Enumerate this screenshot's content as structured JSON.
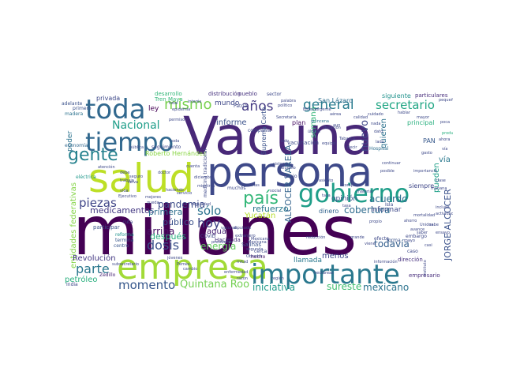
{
  "words": [
    {
      "text": "millones",
      "color": "#440154"
    },
    {
      "text": "Vacuna",
      "color": "#482878"
    },
    {
      "text": "persona",
      "color": "#3e4989"
    },
    {
      "text": "salud",
      "color": "#bddf26"
    },
    {
      "text": "empresa",
      "color": "#a2da37"
    },
    {
      "text": "importante",
      "color": "#2a788e"
    },
    {
      "text": "gobierno",
      "color": "#1f9e89"
    },
    {
      "text": "tiempo",
      "color": "#31688e"
    },
    {
      "text": "toda",
      "color": "#31688e"
    },
    {
      "text": "país",
      "color": "#35b779"
    },
    {
      "text": "gente",
      "color": "#26828e"
    },
    {
      "text": "mismo",
      "color": "#7ad151"
    },
    {
      "text": "años",
      "color": "#443a83"
    },
    {
      "text": "general",
      "color": "#287c8e"
    },
    {
      "text": "secretario",
      "color": "#22a785"
    },
    {
      "text": "Nacional",
      "color": "#1f9e89"
    },
    {
      "text": "piezas",
      "color": "#404688"
    },
    {
      "text": "parte",
      "color": "#2a788e"
    },
    {
      "text": "momento",
      "color": "#38588c"
    },
    {
      "text": "dosis",
      "color": "#3b528b"
    },
    {
      "text": "hoy",
      "color": "#404688"
    },
    {
      "text": "sólo",
      "color": "#2c728e"
    },
    {
      "text": "Quintana Roo",
      "color": "#75d054"
    },
    {
      "text": "medicamentos",
      "color": "#443983"
    },
    {
      "text": "público",
      "color": "#3b518b"
    },
    {
      "text": "arriba",
      "color": "#471365"
    },
    {
      "text": "primera",
      "color": "#2e6f8e"
    },
    {
      "text": "pandemia",
      "color": "#3d4d8a"
    },
    {
      "text": "después",
      "color": "#2ab07f"
    },
    {
      "text": "energía",
      "color": "#63cb5f"
    },
    {
      "text": "refuerzo",
      "color": "#2a788e"
    },
    {
      "text": "cobertura",
      "color": "#2f6c8e"
    },
    {
      "text": "todavía",
      "color": "#345f8d"
    },
    {
      "text": "iniciativa",
      "color": "#1f9a8a"
    },
    {
      "text": "sureste",
      "color": "#42be71"
    },
    {
      "text": "mexicano",
      "color": "#2c738e"
    },
    {
      "text": "acuerdo",
      "color": "#2e6e8e"
    },
    {
      "text": "nuevo",
      "color": "#3f4788"
    },
    {
      "text": "ALCOCER VARELA",
      "color": "#33638d"
    },
    {
      "text": "JORGE ALCOCER",
      "color": "#3b528b"
    },
    {
      "text": "entidades federativas",
      "color": "#86d549"
    },
    {
      "text": "Revolución",
      "color": "#443983"
    },
    {
      "text": "petróleo",
      "color": "#2ab07f"
    },
    {
      "text": "informe",
      "color": "#3b528b"
    },
    {
      "text": "mundo",
      "color": "#3f4889"
    },
    {
      "text": "agua",
      "color": "#482475"
    },
    {
      "text": "poder",
      "color": "#2c738e"
    },
    {
      "text": "ley",
      "color": "#440154"
    },
    {
      "text": "privada",
      "color": "#3e4989"
    },
    {
      "text": "desarrollo",
      "color": "#35b779"
    },
    {
      "text": "distribución",
      "color": "#46327e"
    },
    {
      "text": "pueblo",
      "color": "#46327e"
    },
    {
      "text": "siguiente",
      "color": "#20928c"
    },
    {
      "text": "particulares",
      "color": "#472d7b"
    },
    {
      "text": "principal",
      "color": "#2ab07f"
    },
    {
      "text": "Roberto Hernández",
      "color": "#8bd646"
    },
    {
      "text": "Suprema Corte",
      "color": "#3b528b"
    },
    {
      "text": "San Lázaro",
      "color": "#2e6e8e"
    },
    {
      "text": "vía",
      "color": "#2a788e"
    },
    {
      "text": "quieren",
      "color": "#2c728e"
    },
    {
      "text": "pueden",
      "color": "#1fa088"
    },
    {
      "text": "semana",
      "color": "#35b779"
    },
    {
      "text": "plan",
      "color": "#471063"
    },
    {
      "text": "vacunación",
      "color": "#3e4989"
    },
    {
      "text": "opinión",
      "color": "#3b528b"
    },
    {
      "text": "informar",
      "color": "#3e4989"
    },
    {
      "text": "siempre",
      "color": "#3f4788"
    },
    {
      "text": "dinero",
      "color": "#33638d"
    },
    {
      "text": "Yucatán",
      "color": "#b5de2b"
    },
    {
      "text": "llamada",
      "color": "#2a788e"
    },
    {
      "text": "menos",
      "color": "#3e4989"
    },
    {
      "text": "dirección",
      "color": "#46307e"
    },
    {
      "text": "empresario",
      "color": "#472d7b"
    },
    {
      "text": "India",
      "color": "#3e4989"
    },
    {
      "text": "Zedillo",
      "color": "#482475"
    },
    {
      "text": "participar",
      "color": "#3b528b"
    },
    {
      "text": "centro",
      "color": "#39568c"
    },
    {
      "text": "reforma",
      "color": "#20928c"
    },
    {
      "text": "termina",
      "color": "#38588c"
    },
    {
      "text": "ruta",
      "color": "#3f4889"
    },
    {
      "text": "economía",
      "color": "#31688e"
    },
    {
      "text": "madera",
      "color": "#2c728e"
    },
    {
      "text": "primero",
      "color": "#3b528b"
    },
    {
      "text": "adelante",
      "color": "#3b528b"
    },
    {
      "text": "eléctrica",
      "color": "#1f988b"
    },
    {
      "text": "Salinas",
      "color": "#3b528b"
    },
    {
      "text": "Hacienda",
      "color": "#46327e"
    },
    {
      "text": "COVID",
      "color": "#3e4989"
    },
    {
      "text": "hecho",
      "color": "#471063"
    },
    {
      "text": "PAN",
      "color": "#38598c"
    },
    {
      "text": "Isla",
      "color": "#3e4989"
    },
    {
      "text": "Hospital",
      "color": "#2e6e8e"
    },
    {
      "text": "forma",
      "color": "#3b528b"
    },
    {
      "text": "efecto",
      "color": "#3e4989"
    },
    {
      "text": "caso",
      "color": "#3e4989"
    },
    {
      "text": "Patria",
      "color": "#3e4989"
    },
    {
      "text": "Tren Maya",
      "color": "#35b779"
    },
    {
      "text": "sector",
      "color": "#3e4989"
    },
    {
      "text": "palabra",
      "color": "#3e4989"
    },
    {
      "text": "político",
      "color": "#3e4989"
    },
    {
      "text": "compañía",
      "color": "#3e4989"
    },
    {
      "text": "equipo",
      "color": "#3e4989"
    },
    {
      "text": "quincena",
      "color": "#2c728e"
    },
    {
      "text": "seguimiento",
      "color": "#3e4989"
    },
    {
      "text": "Secretaría",
      "color": "#3e4989"
    },
    {
      "text": "continuar",
      "color": "#3e4989"
    },
    {
      "text": "importancia",
      "color": "#3e4989"
    },
    {
      "text": "gasto",
      "color": "#3e4989"
    },
    {
      "text": "producción",
      "color": "#2ab07f"
    },
    {
      "text": "cuenta",
      "color": "#3e4989"
    },
    {
      "text": "embargo",
      "color": "#3e4989"
    },
    {
      "text": "pequeño",
      "color": "#3e4989"
    },
    {
      "text": "cerca",
      "color": "#3e4989"
    },
    {
      "text": "Mexicana",
      "color": "#3e4989"
    },
    {
      "text": "abajo",
      "color": "#3e4989"
    },
    {
      "text": "tasa",
      "color": "#3e4989"
    },
    {
      "text": "trabajo",
      "color": "#3e4989"
    },
    {
      "text": "atención",
      "color": "#3e4989"
    },
    {
      "text": "debe",
      "color": "#3e4989"
    },
    {
      "text": "seguro",
      "color": "#3e4989"
    },
    {
      "text": "mejores",
      "color": "#3e4989"
    },
    {
      "text": "queda",
      "color": "#3e4989"
    },
    {
      "text": "selva",
      "color": "#3e4989"
    },
    {
      "text": "servicio",
      "color": "#3e4989"
    },
    {
      "text": "interés",
      "color": "#3e4989"
    },
    {
      "text": "permiso",
      "color": "#3e4989"
    },
    {
      "text": "epidemia",
      "color": "#3e4989"
    },
    {
      "text": "actividad",
      "color": "#3e4989"
    },
    {
      "text": "mortalidad",
      "color": "#3e4989"
    },
    {
      "text": "Instituto",
      "color": "#3e4989"
    },
    {
      "text": "enfermedad",
      "color": "#3e4989"
    },
    {
      "text": "vacunas",
      "color": "#3e4989"
    },
    {
      "text": "presidente",
      "color": "#3e4989"
    },
    {
      "text": "doctor",
      "color": "#3e4989"
    },
    {
      "text": "Mexicana",
      "color": "#3e4989"
    },
    {
      "text": "reducción",
      "color": "#3e4989"
    },
    {
      "text": "material",
      "color": "#3e4989"
    },
    {
      "text": "compra",
      "color": "#3e4989"
    },
    {
      "text": "viene",
      "color": "#3e4989"
    },
    {
      "text": "saber",
      "color": "#3e4989"
    },
    {
      "text": "ensayo",
      "color": "#3e4989"
    },
    {
      "text": "incluso",
      "color": "#3e4989"
    },
    {
      "text": "casi",
      "color": "#3e4989"
    },
    {
      "text": "mitad",
      "color": "#3e4989"
    },
    {
      "text": "asiento",
      "color": "#3e4989"
    },
    {
      "text": "último",
      "color": "#3e4989"
    },
    {
      "text": "duración",
      "color": "#3e4989"
    },
    {
      "text": "aérea",
      "color": "#3e4989"
    },
    {
      "text": "aun",
      "color": "#3e4989"
    },
    {
      "text": "urgente",
      "color": "#3e4989"
    },
    {
      "text": "calidad",
      "color": "#3e4989"
    },
    {
      "text": "cuidado",
      "color": "#3e4989"
    },
    {
      "text": "nada",
      "color": "#3e4989"
    },
    {
      "text": "dato",
      "color": "#3e4989"
    },
    {
      "text": "hablar",
      "color": "#3e4989"
    },
    {
      "text": "mayor",
      "color": "#3e4989"
    },
    {
      "text": "información",
      "color": "#3e4989"
    },
    {
      "text": "grande",
      "color": "#3e4989"
    },
    {
      "text": "hectáreas",
      "color": "#3e4989"
    },
    {
      "text": "seguridad",
      "color": "#3e4989"
    },
    {
      "text": "vida",
      "color": "#3e4989"
    },
    {
      "text": "subsecretario",
      "color": "#3e4989"
    },
    {
      "text": "jóvenes",
      "color": "#3e4989"
    },
    {
      "text": "Pemex",
      "color": "#3e4989"
    },
    {
      "text": "cambio",
      "color": "#3e4989"
    },
    {
      "text": "haciendo",
      "color": "#3e4989"
    },
    {
      "text": "total",
      "color": "#3e4989"
    },
    {
      "text": "pública",
      "color": "#3e4989"
    },
    {
      "text": "Ejecutivo",
      "color": "#3e4989"
    },
    {
      "text": "personas",
      "color": "#3e4989"
    },
    {
      "text": "social",
      "color": "#3e4989"
    },
    {
      "text": "Obrador",
      "color": "#3e4989"
    },
    {
      "text": "segunda",
      "color": "#3e4989"
    },
    {
      "text": "extranjero",
      "color": "#3e4989"
    },
    {
      "text": "Birmex",
      "color": "#3e4989"
    },
    {
      "text": "Tabasco",
      "color": "#3e4989"
    },
    {
      "text": "posible",
      "color": "#3e4989"
    },
    {
      "text": "sido",
      "color": "#3e4989"
    },
    {
      "text": "tasa",
      "color": "#3e4989"
    },
    {
      "text": "Unidos",
      "color": "#3e4989"
    },
    {
      "text": "ahorro",
      "color": "#3e4989"
    },
    {
      "text": "vía",
      "color": "#3e4989"
    },
    {
      "text": "ahora",
      "color": "#3e4989"
    },
    {
      "text": "toda",
      "color": "#3e4989"
    },
    {
      "text": "lado",
      "color": "#3e4989"
    },
    {
      "text": "decir",
      "color": "#3e4989"
    },
    {
      "text": "poca",
      "color": "#3e4989"
    },
    {
      "text": "mañana",
      "color": "#3e4989"
    },
    {
      "text": "clase",
      "color": "#3e4989"
    },
    {
      "text": "sabe",
      "color": "#3e4989"
    },
    {
      "text": "propio",
      "color": "#3e4989"
    },
    {
      "text": "mayo",
      "color": "#3e4989"
    },
    {
      "text": "avance",
      "color": "#3e4989"
    },
    {
      "text": "diputado",
      "color": "#3e4989"
    },
    {
      "text": "medicina tradicional",
      "color": "#3e4989"
    },
    {
      "text": "mientras",
      "color": "#3e4989"
    },
    {
      "text": "diciembre",
      "color": "#3e4989"
    },
    {
      "text": "razón",
      "color": "#3e4989"
    },
    {
      "text": "región",
      "color": "#3e4989"
    },
    {
      "text": "muchos",
      "color": "#3e4989"
    },
    {
      "text": "alumno",
      "color": "#3e4989"
    },
    {
      "text": "sistema",
      "color": "#3e4989"
    }
  ]
}
